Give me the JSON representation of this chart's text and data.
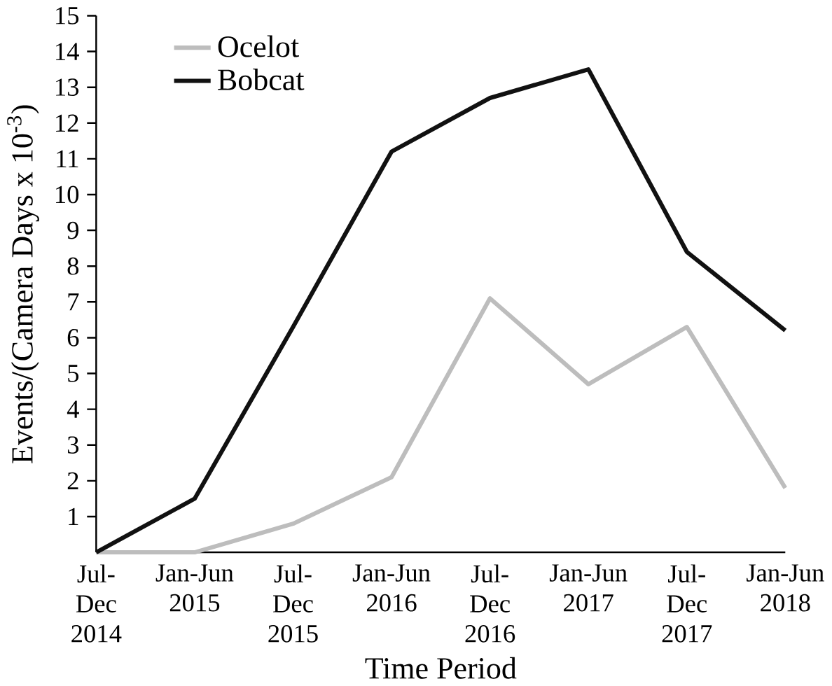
{
  "chart_data": {
    "type": "line",
    "xlabel": "Time Period",
    "ylabel": "Events/(Camera Days x 10$^{-3}$)",
    "categories": [
      "Jul-Dec 2014",
      "Jan-Jun 2015",
      "Jul-Dec 2015",
      "Jan-Jun 2016",
      "Jul-Dec 2016",
      "Jan-Jun 2017",
      "Jul-Dec 2017",
      "Jan-Jun 2018"
    ],
    "series": [
      {
        "name": "Ocelot",
        "color": "#bdbdbd",
        "values": [
          0,
          0,
          0.8,
          2.1,
          7.1,
          4.7,
          6.3,
          1.8
        ]
      },
      {
        "name": "Bobcat",
        "color": "#111111",
        "values": [
          0,
          1.5,
          6.3,
          11.2,
          12.7,
          13.5,
          8.4,
          6.2
        ]
      }
    ],
    "ylim": [
      0,
      15
    ],
    "yticks": [
      1,
      2,
      3,
      4,
      5,
      6,
      7,
      8,
      9,
      10,
      11,
      12,
      13,
      14,
      15
    ],
    "legend": "top left",
    "grid": false,
    "marker": "none",
    "line_style": "solid"
  }
}
